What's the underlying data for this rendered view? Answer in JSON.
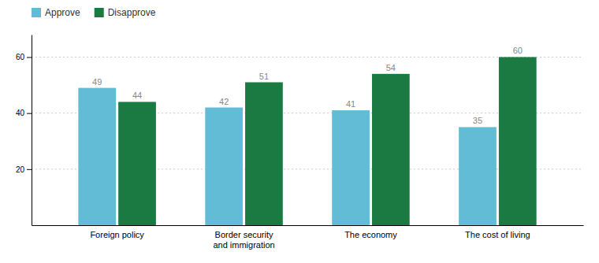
{
  "chart_data": {
    "type": "bar",
    "categories": [
      "Foreign policy",
      "Border security\nand immigration",
      "The economy",
      "The cost of living"
    ],
    "series": [
      {
        "name": "Approve",
        "color": "#62bcd6",
        "values": [
          49,
          42,
          41,
          35
        ]
      },
      {
        "name": "Disapprove",
        "color": "#1a7a42",
        "values": [
          44,
          51,
          54,
          60
        ]
      }
    ],
    "ylim": [
      0,
      68
    ],
    "yticks": [
      20,
      40,
      60
    ],
    "grid": true,
    "legend": "upper left",
    "data_labels": true
  }
}
